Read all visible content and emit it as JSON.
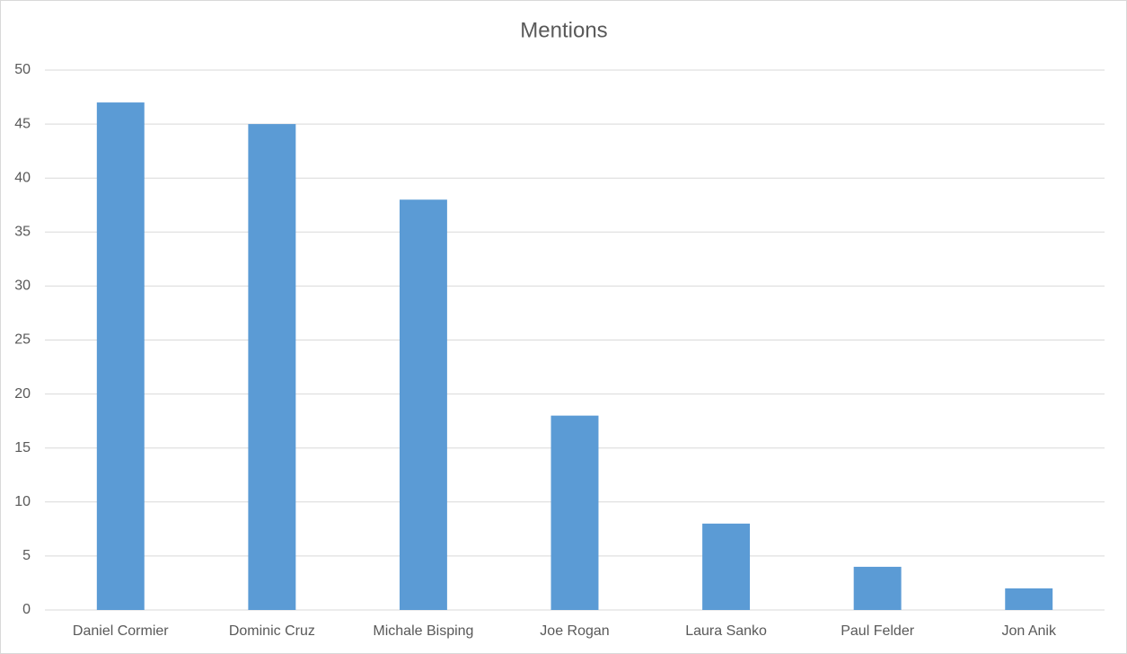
{
  "chart_data": {
    "type": "bar",
    "title": "Mentions",
    "categories": [
      "Daniel Cormier",
      "Dominic Cruz",
      "Michale Bisping",
      "Joe Rogan",
      "Laura Sanko",
      "Paul Felder",
      "Jon Anik"
    ],
    "values": [
      47,
      45,
      38,
      18,
      8,
      4,
      2
    ],
    "color": "#5b9bd5",
    "ylim": [
      0,
      50
    ],
    "yticks": [
      0,
      5,
      10,
      15,
      20,
      25,
      30,
      35,
      40,
      45,
      50
    ],
    "grid": true
  }
}
